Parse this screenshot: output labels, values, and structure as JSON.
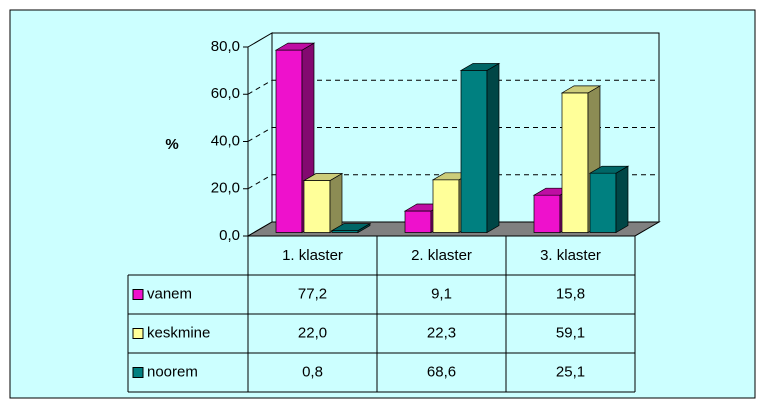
{
  "chart_data": {
    "type": "bar3d",
    "ylabel": "%",
    "categories": [
      "1. klaster",
      "2. klaster",
      "3. klaster"
    ],
    "series": [
      {
        "name": "vanem",
        "color": "#ee11cc",
        "values": [
          77.2,
          9.1,
          15.8
        ],
        "value_labels": [
          "77,2",
          "9,1",
          "15,8"
        ]
      },
      {
        "name": "keskmine",
        "color": "#ffff99",
        "values": [
          22.0,
          22.3,
          59.1
        ],
        "value_labels": [
          "22,0",
          "22,3",
          "59,1"
        ]
      },
      {
        "name": "noorem",
        "color": "#008080",
        "values": [
          0.8,
          68.6,
          25.1
        ],
        "value_labels": [
          "0,8",
          "68,6",
          "25,1"
        ]
      }
    ],
    "ylim": [
      0,
      80
    ],
    "yticks": [
      {
        "value": 0,
        "label": "0,0"
      },
      {
        "value": 20,
        "label": "20,0"
      },
      {
        "value": 40,
        "label": "40,0"
      },
      {
        "value": 60,
        "label": "60,0"
      },
      {
        "value": 80,
        "label": "80,0"
      }
    ],
    "grid": true,
    "data_table": true
  }
}
